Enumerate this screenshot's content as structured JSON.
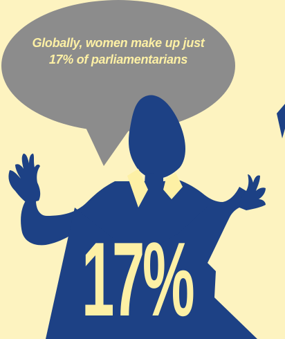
{
  "caption": {
    "line1": "Globally, women make up just",
    "line2": "17% of parliamentarians"
  },
  "statistic": {
    "value": "17%"
  },
  "colors": {
    "background": "#fdf3c0",
    "bubble": "#8c8c8c",
    "silhouette": "#1d4185",
    "accent_text": "#fdf0a5"
  }
}
